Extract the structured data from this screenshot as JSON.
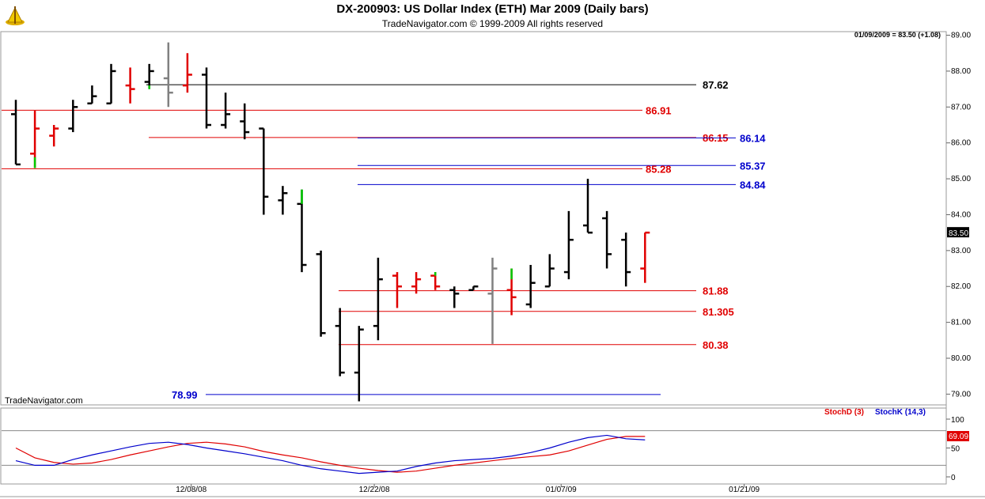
{
  "header": {
    "title": "DX-200903:  US Dollar Index (ETH) Mar 2009  (Daily bars)",
    "copyright": "TradeNavigator.com © 1999-2009 All rights reserved",
    "readout": "01/09/2009 = 83.50 (+1.08)"
  },
  "watermark": "TradeNavigator.com",
  "colors": {
    "up": "#e00000",
    "down": "#000000",
    "green": "#00cc00",
    "gray": "#808080",
    "blue": "#0000cc",
    "red": "#e00000"
  },
  "chart_data": [
    {
      "type": "ohlc",
      "title": "DX-200903:  US Dollar Index (ETH) Mar 2009  (Daily bars)",
      "ylim": [
        78.7,
        89.1
      ],
      "y_ticks": [
        "79.00",
        "80.00",
        "81.00",
        "82.00",
        "83.00",
        "84.00",
        "85.00",
        "86.00",
        "87.00",
        "88.00",
        "89.00"
      ],
      "x_ticks": [
        "12/08/08",
        "12/22/08",
        "01/07/09",
        "01/21/09"
      ],
      "last_price_label": "83.50",
      "bars": [
        {
          "o": 86.8,
          "h": 87.2,
          "l": 85.4,
          "c": 85.4,
          "color": "down"
        },
        {
          "o": 85.7,
          "h": 86.9,
          "l": 85.3,
          "c": 86.4,
          "color": "up",
          "green": [
            85.3,
            85.6
          ]
        },
        {
          "o": 86.2,
          "h": 86.5,
          "l": 85.9,
          "c": 86.4,
          "color": "up"
        },
        {
          "o": 86.4,
          "h": 87.2,
          "l": 86.3,
          "c": 87.0,
          "color": "down"
        },
        {
          "o": 87.1,
          "h": 87.6,
          "l": 87.1,
          "c": 87.3,
          "color": "down"
        },
        {
          "o": 87.1,
          "h": 88.2,
          "l": 87.1,
          "c": 88.0,
          "color": "down"
        },
        {
          "o": 87.6,
          "h": 88.1,
          "l": 87.1,
          "c": 87.5,
          "color": "up"
        },
        {
          "o": 87.7,
          "h": 88.2,
          "l": 87.5,
          "c": 88.0,
          "color": "down",
          "green": [
            87.5,
            87.6
          ]
        },
        {
          "o": 87.8,
          "h": 88.8,
          "l": 87.0,
          "c": 87.4,
          "color": "gray"
        },
        {
          "o": 87.6,
          "h": 88.5,
          "l": 87.4,
          "c": 87.9,
          "color": "up"
        },
        {
          "o": 87.9,
          "h": 88.1,
          "l": 86.4,
          "c": 86.5,
          "color": "down"
        },
        {
          "o": 86.5,
          "h": 87.4,
          "l": 86.4,
          "c": 86.8,
          "color": "down"
        },
        {
          "o": 86.6,
          "h": 87.1,
          "l": 86.1,
          "c": 86.3,
          "color": "down"
        },
        {
          "o": 86.4,
          "h": 86.4,
          "l": 84.0,
          "c": 84.5,
          "color": "down"
        },
        {
          "o": 84.4,
          "h": 84.8,
          "l": 84.0,
          "c": 84.6,
          "color": "down"
        },
        {
          "o": 84.3,
          "h": 84.7,
          "l": 82.4,
          "c": 82.6,
          "color": "down",
          "green": [
            84.3,
            84.7
          ]
        },
        {
          "o": 82.9,
          "h": 83.0,
          "l": 80.6,
          "c": 80.7,
          "color": "down"
        },
        {
          "o": 80.9,
          "h": 81.4,
          "l": 79.5,
          "c": 79.6,
          "color": "down"
        },
        {
          "o": 79.6,
          "h": 80.9,
          "l": 78.8,
          "c": 80.8,
          "color": "down"
        },
        {
          "o": 80.9,
          "h": 82.8,
          "l": 80.5,
          "c": 82.2,
          "color": "down"
        },
        {
          "o": 82.3,
          "h": 82.4,
          "l": 81.4,
          "c": 82.0,
          "color": "up"
        },
        {
          "o": 82.0,
          "h": 82.4,
          "l": 81.8,
          "c": 82.2,
          "color": "up"
        },
        {
          "o": 82.3,
          "h": 82.4,
          "l": 81.9,
          "c": 82.0,
          "color": "up",
          "green": [
            82.3,
            82.4
          ]
        },
        {
          "o": 81.9,
          "h": 82.0,
          "l": 81.4,
          "c": 81.8,
          "color": "down"
        },
        {
          "o": 81.9,
          "h": 82.0,
          "l": 81.9,
          "c": 82.0,
          "color": "down"
        },
        {
          "o": 81.8,
          "h": 82.8,
          "l": 80.4,
          "c": 82.5,
          "color": "gray"
        },
        {
          "o": 81.9,
          "h": 82.5,
          "l": 81.2,
          "c": 81.7,
          "color": "up",
          "green": [
            82.2,
            82.5
          ]
        },
        {
          "o": 81.5,
          "h": 82.6,
          "l": 81.4,
          "c": 82.1,
          "color": "down"
        },
        {
          "o": 82.0,
          "h": 82.9,
          "l": 82.0,
          "c": 82.5,
          "color": "down"
        },
        {
          "o": 82.4,
          "h": 84.1,
          "l": 82.2,
          "c": 83.3,
          "color": "down"
        },
        {
          "o": 83.7,
          "h": 85.0,
          "l": 83.5,
          "c": 83.5,
          "color": "down"
        },
        {
          "o": 83.9,
          "h": 84.1,
          "l": 82.5,
          "c": 82.9,
          "color": "down"
        },
        {
          "o": 83.3,
          "h": 83.5,
          "l": 82.0,
          "c": 82.4,
          "color": "down"
        },
        {
          "o": 82.5,
          "h": 83.5,
          "l": 82.1,
          "c": 83.5,
          "color": "up"
        }
      ],
      "levels": [
        {
          "value": 87.62,
          "label": "87.62",
          "color": "down",
          "label_pos": "right"
        },
        {
          "value": 86.91,
          "label": "86.91",
          "color": "up",
          "label_pos": "mid"
        },
        {
          "value": 86.15,
          "label": "86.15",
          "color": "up",
          "label_pos": "right-inner"
        },
        {
          "value": 86.14,
          "label": "86.14",
          "color": "blue",
          "label_pos": "right-outer"
        },
        {
          "value": 85.37,
          "label": "85.37",
          "color": "blue",
          "label_pos": "right-outer"
        },
        {
          "value": 85.28,
          "label": "85.28",
          "color": "up",
          "label_pos": "mid"
        },
        {
          "value": 84.84,
          "label": "84.84",
          "color": "blue",
          "label_pos": "right-outer"
        },
        {
          "value": 81.88,
          "label": "81.88",
          "color": "up",
          "label_pos": "right"
        },
        {
          "value": 81.305,
          "label": "81.305",
          "color": "up",
          "label_pos": "right"
        },
        {
          "value": 80.38,
          "label": "80.38",
          "color": "up",
          "label_pos": "right"
        },
        {
          "value": 78.99,
          "label": "78.99",
          "color": "blue",
          "label_pos": "left"
        }
      ]
    },
    {
      "type": "line",
      "ylim": [
        0,
        100
      ],
      "y_ticks": [
        "0",
        "50",
        "100"
      ],
      "last_value_label": "69.09",
      "series": [
        {
          "name": "StochD (3)",
          "color": "red",
          "values": [
            50,
            33,
            25,
            22,
            24,
            30,
            38,
            45,
            52,
            58,
            60,
            57,
            52,
            44,
            38,
            33,
            26,
            20,
            15,
            11,
            8,
            10,
            15,
            20,
            24,
            28,
            32,
            35,
            38,
            45,
            55,
            65,
            70,
            70
          ]
        },
        {
          "name": "StochK (14,3)",
          "color": "blue",
          "values": [
            28,
            20,
            20,
            30,
            38,
            45,
            52,
            58,
            60,
            56,
            50,
            45,
            40,
            34,
            28,
            20,
            14,
            10,
            6,
            8,
            10,
            18,
            24,
            28,
            30,
            32,
            36,
            42,
            50,
            60,
            68,
            72,
            66,
            64
          ]
        }
      ]
    }
  ],
  "legend": {
    "d": "StochD (3)",
    "k": "StochK (14,3)"
  }
}
